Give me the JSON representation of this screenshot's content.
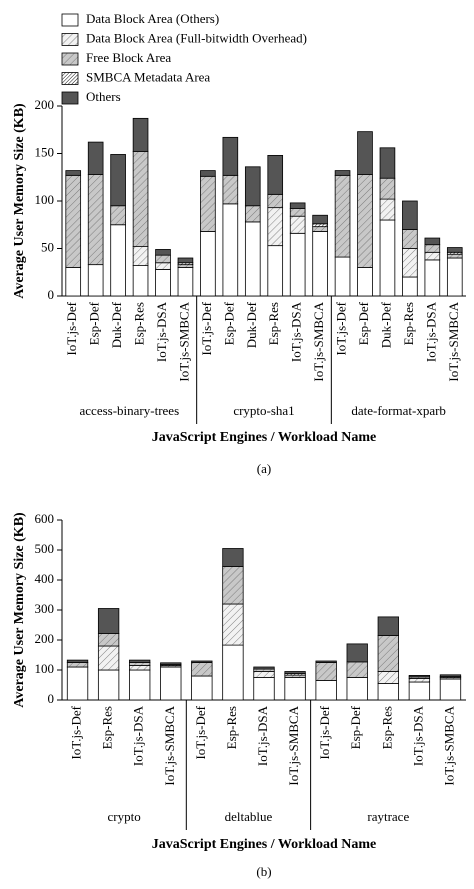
{
  "chart_data": [
    {
      "type": "bar",
      "stacked": true,
      "caption": "(a)",
      "y_label": "Average User Memory Size (KB)",
      "x_label": "JavaScript Engines / Workload Name",
      "ylim": [
        0,
        200
      ],
      "yticks": [
        0,
        50,
        100,
        150,
        200
      ],
      "groups": [
        {
          "label": "access-binary-trees",
          "categories": [
            "IoT.js-Def",
            "Esp-Def",
            "Duk-Def",
            "Esp-Res",
            "IoT.js-DSA",
            "IoT.js-SMBCA"
          ]
        },
        {
          "label": "crypto-sha1",
          "categories": [
            "IoT.js-Def",
            "Esp-Def",
            "Duk-Def",
            "Esp-Res",
            "IoT.js-DSA",
            "IoT.js-SMBCA"
          ]
        },
        {
          "label": "date-format-xparb",
          "categories": [
            "IoT.js-Def",
            "Esp-Def",
            "Duk-Def",
            "Esp-Res",
            "IoT.js-DSA",
            "IoT.js-SMBCA"
          ]
        }
      ],
      "series": [
        {
          "name": "Data Block Area (Others)",
          "color": "#ffffff",
          "hatch": "none",
          "values": [
            30,
            33,
            75,
            32,
            28,
            30,
            68,
            97,
            78,
            53,
            66,
            68,
            41,
            30,
            80,
            20,
            38,
            40
          ]
        },
        {
          "name": "Data Block Area (Full-bitwidth Overhead)",
          "color": "#f2f2f2",
          "hatch": "sparse",
          "values": [
            0,
            0,
            0,
            20,
            7,
            0,
            0,
            0,
            0,
            40,
            18,
            0,
            0,
            0,
            22,
            30,
            8,
            0
          ]
        },
        {
          "name": "Free Block Area",
          "color": "#c8c8c8",
          "hatch": "sparse",
          "values": [
            97,
            95,
            20,
            100,
            8,
            3,
            58,
            30,
            17,
            14,
            8,
            5,
            86,
            98,
            22,
            20,
            8,
            4
          ]
        },
        {
          "name": "SMBCA Metadata Area",
          "color": "#ffffff",
          "hatch": "dense",
          "values": [
            0,
            0,
            0,
            0,
            0,
            2,
            0,
            0,
            0,
            0,
            0,
            3,
            0,
            0,
            0,
            0,
            0,
            2
          ]
        },
        {
          "name": "Others",
          "color": "#555555",
          "hatch": "none",
          "values": [
            5,
            34,
            54,
            35,
            6,
            5,
            6,
            40,
            41,
            41,
            6,
            9,
            5,
            45,
            32,
            30,
            7,
            5
          ]
        }
      ]
    },
    {
      "type": "bar",
      "stacked": true,
      "caption": "(b)",
      "y_label": "Average User Memory Size (KB)",
      "x_label": "JavaScript Engines / Workload Name",
      "ylim": [
        0,
        600
      ],
      "yticks": [
        0,
        100,
        200,
        300,
        400,
        500,
        600
      ],
      "groups": [
        {
          "label": "crypto",
          "categories": [
            "IoT.js-Def",
            "Esp-Res",
            "IoT.js-DSA",
            "IoT.js-SMBCA"
          ]
        },
        {
          "label": "deltablue",
          "categories": [
            "IoT.js-Def",
            "Esp-Res",
            "IoT.js-DSA",
            "IoT.js-SMBCA"
          ]
        },
        {
          "label": "raytrace",
          "categories": [
            "IoT.js-Def",
            "Esp-Def",
            "Esp-Res",
            "IoT.js-DSA",
            "IoT.js-SMBCA"
          ]
        }
      ],
      "series": [
        {
          "color": "#ffffff",
          "hatch": "none",
          "values": [
            110,
            100,
            100,
            110,
            80,
            183,
            75,
            75,
            65,
            75,
            55,
            60,
            70
          ]
        },
        {
          "color": "#f2f2f2",
          "hatch": "sparse",
          "values": [
            0,
            80,
            15,
            0,
            0,
            137,
            20,
            0,
            0,
            0,
            40,
            12,
            0
          ]
        },
        {
          "color": "#c8c8c8",
          "hatch": "sparse",
          "values": [
            15,
            42,
            10,
            5,
            45,
            125,
            8,
            8,
            60,
            52,
            120,
            5,
            5
          ]
        },
        {
          "color": "#ffffff",
          "hatch": "dense",
          "values": [
            0,
            0,
            0,
            3,
            0,
            0,
            0,
            5,
            0,
            0,
            0,
            0,
            3
          ]
        },
        {
          "color": "#555555",
          "hatch": "none",
          "values": [
            8,
            83,
            8,
            6,
            5,
            60,
            7,
            7,
            5,
            60,
            62,
            5,
            6
          ]
        }
      ]
    }
  ]
}
